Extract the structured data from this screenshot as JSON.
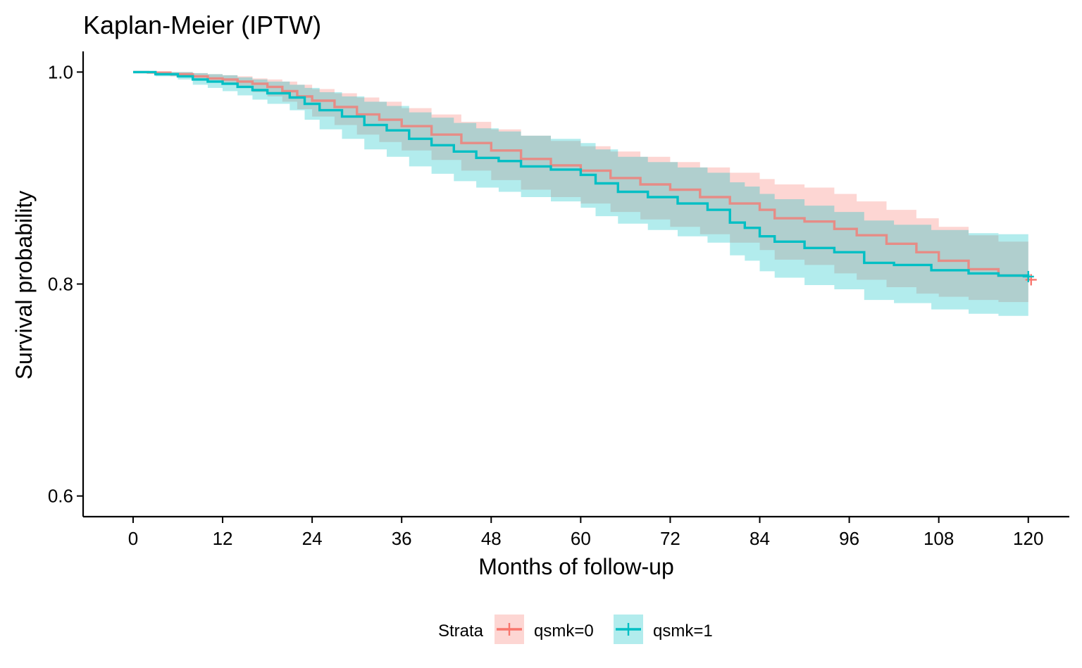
{
  "chart_data": {
    "type": "line",
    "title": "Kaplan-Meier (IPTW)",
    "xlabel": "Months of follow-up",
    "ylabel": "Survival probability",
    "xlim": [
      -6.7,
      125.5
    ],
    "ylim": [
      0.5805,
      1.0195
    ],
    "x_ticks": [
      0,
      12,
      24,
      36,
      48,
      60,
      72,
      84,
      96,
      108,
      120
    ],
    "y_ticks": [
      0.6,
      0.8,
      1.0
    ],
    "y_tick_labels": [
      "0.6",
      "0.8",
      "1.0"
    ],
    "grid": false,
    "legend": {
      "title": "Strata",
      "position": "bottom"
    },
    "series": [
      {
        "name": "qsmk=0",
        "color": "#F8766D",
        "fill": "#F8766D",
        "x": [
          0,
          2,
          5,
          8,
          10,
          12,
          14,
          16,
          18,
          20,
          22,
          24,
          27,
          30,
          33,
          36,
          40,
          44,
          48,
          52,
          56,
          60,
          64,
          68,
          72,
          76,
          80,
          84,
          86,
          90,
          94,
          97,
          101,
          105,
          108,
          112,
          116,
          120
        ],
        "y": [
          1.0,
          0.9995,
          0.998,
          0.996,
          0.994,
          0.993,
          0.991,
          0.989,
          0.986,
          0.982,
          0.977,
          0.973,
          0.967,
          0.96,
          0.955,
          0.949,
          0.941,
          0.933,
          0.926,
          0.918,
          0.912,
          0.907,
          0.9,
          0.894,
          0.889,
          0.882,
          0.876,
          0.87,
          0.862,
          0.859,
          0.852,
          0.846,
          0.838,
          0.83,
          0.822,
          0.814,
          0.808,
          0.804
        ],
        "lower": [
          1.0,
          0.999,
          0.996,
          0.993,
          0.99,
          0.988,
          0.985,
          0.981,
          0.977,
          0.972,
          0.965,
          0.958,
          0.95,
          0.941,
          0.934,
          0.926,
          0.917,
          0.907,
          0.898,
          0.889,
          0.882,
          0.876,
          0.868,
          0.861,
          0.854,
          0.847,
          0.839,
          0.832,
          0.823,
          0.818,
          0.81,
          0.804,
          0.797,
          0.791,
          0.788,
          0.785,
          0.783,
          0.782
        ],
        "upper": [
          1.0,
          1.0,
          1.0,
          0.999,
          0.998,
          0.997,
          0.996,
          0.994,
          0.993,
          0.991,
          0.988,
          0.984,
          0.98,
          0.976,
          0.972,
          0.966,
          0.96,
          0.953,
          0.946,
          0.94,
          0.935,
          0.93,
          0.925,
          0.92,
          0.915,
          0.91,
          0.905,
          0.899,
          0.894,
          0.891,
          0.885,
          0.878,
          0.87,
          0.862,
          0.854,
          0.846,
          0.84,
          0.836
        ]
      },
      {
        "name": "qsmk=1",
        "color": "#00BFC4",
        "fill": "#00BFC4",
        "x": [
          0,
          3,
          6,
          8,
          10,
          12,
          14,
          16,
          18,
          21,
          23,
          25,
          28,
          31,
          34,
          37,
          40,
          43,
          46,
          49,
          52,
          56,
          60,
          62,
          65,
          69,
          73,
          77,
          80,
          82,
          84,
          86,
          90,
          94,
          98,
          102,
          107,
          112,
          116,
          120
        ],
        "y": [
          1.0,
          0.998,
          0.996,
          0.993,
          0.991,
          0.989,
          0.986,
          0.983,
          0.98,
          0.976,
          0.97,
          0.964,
          0.958,
          0.95,
          0.945,
          0.937,
          0.931,
          0.925,
          0.919,
          0.916,
          0.911,
          0.908,
          0.903,
          0.895,
          0.887,
          0.882,
          0.876,
          0.87,
          0.858,
          0.853,
          0.845,
          0.84,
          0.834,
          0.83,
          0.82,
          0.818,
          0.813,
          0.81,
          0.808,
          0.807
        ],
        "lower": [
          1.0,
          0.996,
          0.993,
          0.988,
          0.985,
          0.982,
          0.978,
          0.974,
          0.97,
          0.964,
          0.955,
          0.946,
          0.937,
          0.927,
          0.92,
          0.911,
          0.904,
          0.897,
          0.891,
          0.887,
          0.882,
          0.878,
          0.872,
          0.864,
          0.857,
          0.851,
          0.845,
          0.839,
          0.827,
          0.822,
          0.812,
          0.806,
          0.799,
          0.795,
          0.785,
          0.782,
          0.776,
          0.772,
          0.77,
          0.768
        ],
        "upper": [
          1.0,
          1.0,
          1.0,
          0.999,
          0.998,
          0.997,
          0.995,
          0.993,
          0.991,
          0.988,
          0.985,
          0.981,
          0.977,
          0.972,
          0.968,
          0.962,
          0.957,
          0.952,
          0.947,
          0.944,
          0.94,
          0.937,
          0.933,
          0.927,
          0.92,
          0.915,
          0.91,
          0.905,
          0.896,
          0.892,
          0.885,
          0.88,
          0.874,
          0.868,
          0.86,
          0.856,
          0.851,
          0.848,
          0.847,
          0.846
        ]
      }
    ]
  }
}
